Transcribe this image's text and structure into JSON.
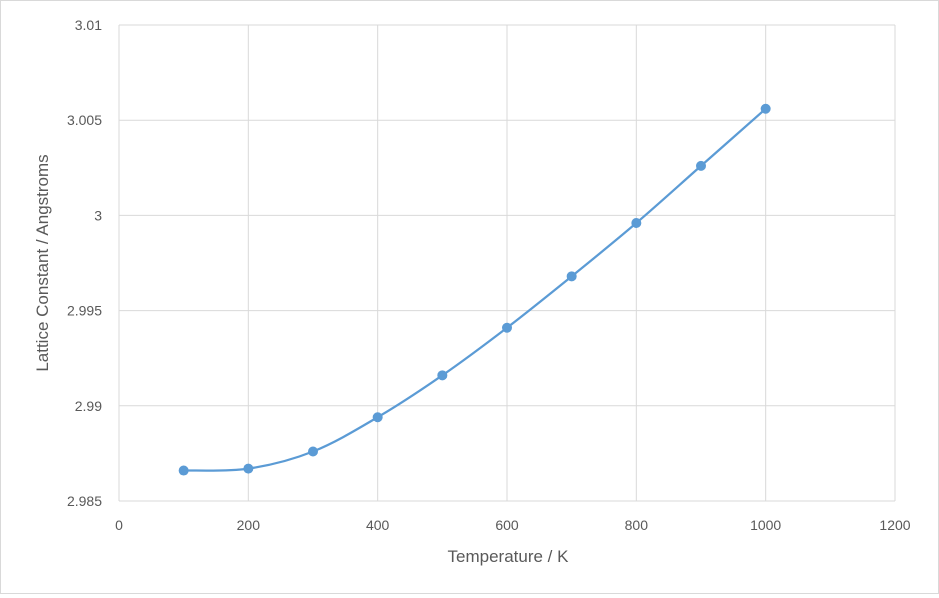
{
  "chart_data": {
    "type": "scatter",
    "title": "",
    "xlabel": "Temperature / K",
    "ylabel": "Lattice Constant / Angstroms",
    "xlim": [
      0,
      1200
    ],
    "ylim": [
      2.985,
      3.01
    ],
    "x_ticks": [
      "0",
      "200",
      "400",
      "600",
      "800",
      "1000",
      "1200"
    ],
    "y_ticks": [
      "2.985",
      "2.99",
      "2.995",
      "3",
      "3.005",
      "3.01"
    ],
    "grid": true,
    "smooth_line": true,
    "series": [
      {
        "color": "#5b9bd5",
        "x": [
          100,
          200,
          300,
          400,
          500,
          600,
          700,
          800,
          900,
          1000
        ],
        "y": [
          2.9866,
          2.9867,
          2.9876,
          2.9894,
          2.9916,
          2.9941,
          2.9968,
          2.9996,
          3.0026,
          3.0056
        ]
      }
    ]
  }
}
